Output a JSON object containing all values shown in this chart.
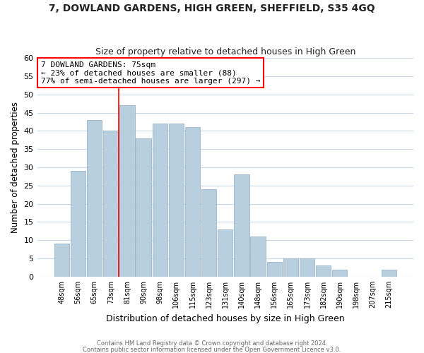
{
  "title": "7, DOWLAND GARDENS, HIGH GREEN, SHEFFIELD, S35 4GQ",
  "subtitle": "Size of property relative to detached houses in High Green",
  "xlabel": "Distribution of detached houses by size in High Green",
  "ylabel": "Number of detached properties",
  "footnote1": "Contains HM Land Registry data © Crown copyright and database right 2024.",
  "footnote2": "Contains public sector information licensed under the Open Government Licence v3.0.",
  "bar_labels": [
    "48sqm",
    "56sqm",
    "65sqm",
    "73sqm",
    "81sqm",
    "90sqm",
    "98sqm",
    "106sqm",
    "115sqm",
    "123sqm",
    "131sqm",
    "140sqm",
    "148sqm",
    "156sqm",
    "165sqm",
    "173sqm",
    "182sqm",
    "190sqm",
    "198sqm",
    "207sqm",
    "215sqm"
  ],
  "bar_values": [
    9,
    29,
    43,
    40,
    47,
    38,
    42,
    42,
    41,
    24,
    13,
    28,
    11,
    4,
    5,
    5,
    3,
    2,
    0,
    0,
    2
  ],
  "bar_color": "#b8cfe0",
  "bar_edge_color": "#9ab4c8",
  "vline_x": 3.5,
  "vline_color": "red",
  "ylim": [
    0,
    60
  ],
  "yticks": [
    0,
    5,
    10,
    15,
    20,
    25,
    30,
    35,
    40,
    45,
    50,
    55,
    60
  ],
  "annotation_title": "7 DOWLAND GARDENS: 75sqm",
  "annotation_line1": "← 23% of detached houses are smaller (88)",
  "annotation_line2": "77% of semi-detached houses are larger (297) →",
  "annotation_box_color": "white",
  "annotation_box_edge": "red",
  "grid_color": "#c8d8e8",
  "background_color": "white",
  "title_color": "#222222",
  "footnote_color": "#666666"
}
